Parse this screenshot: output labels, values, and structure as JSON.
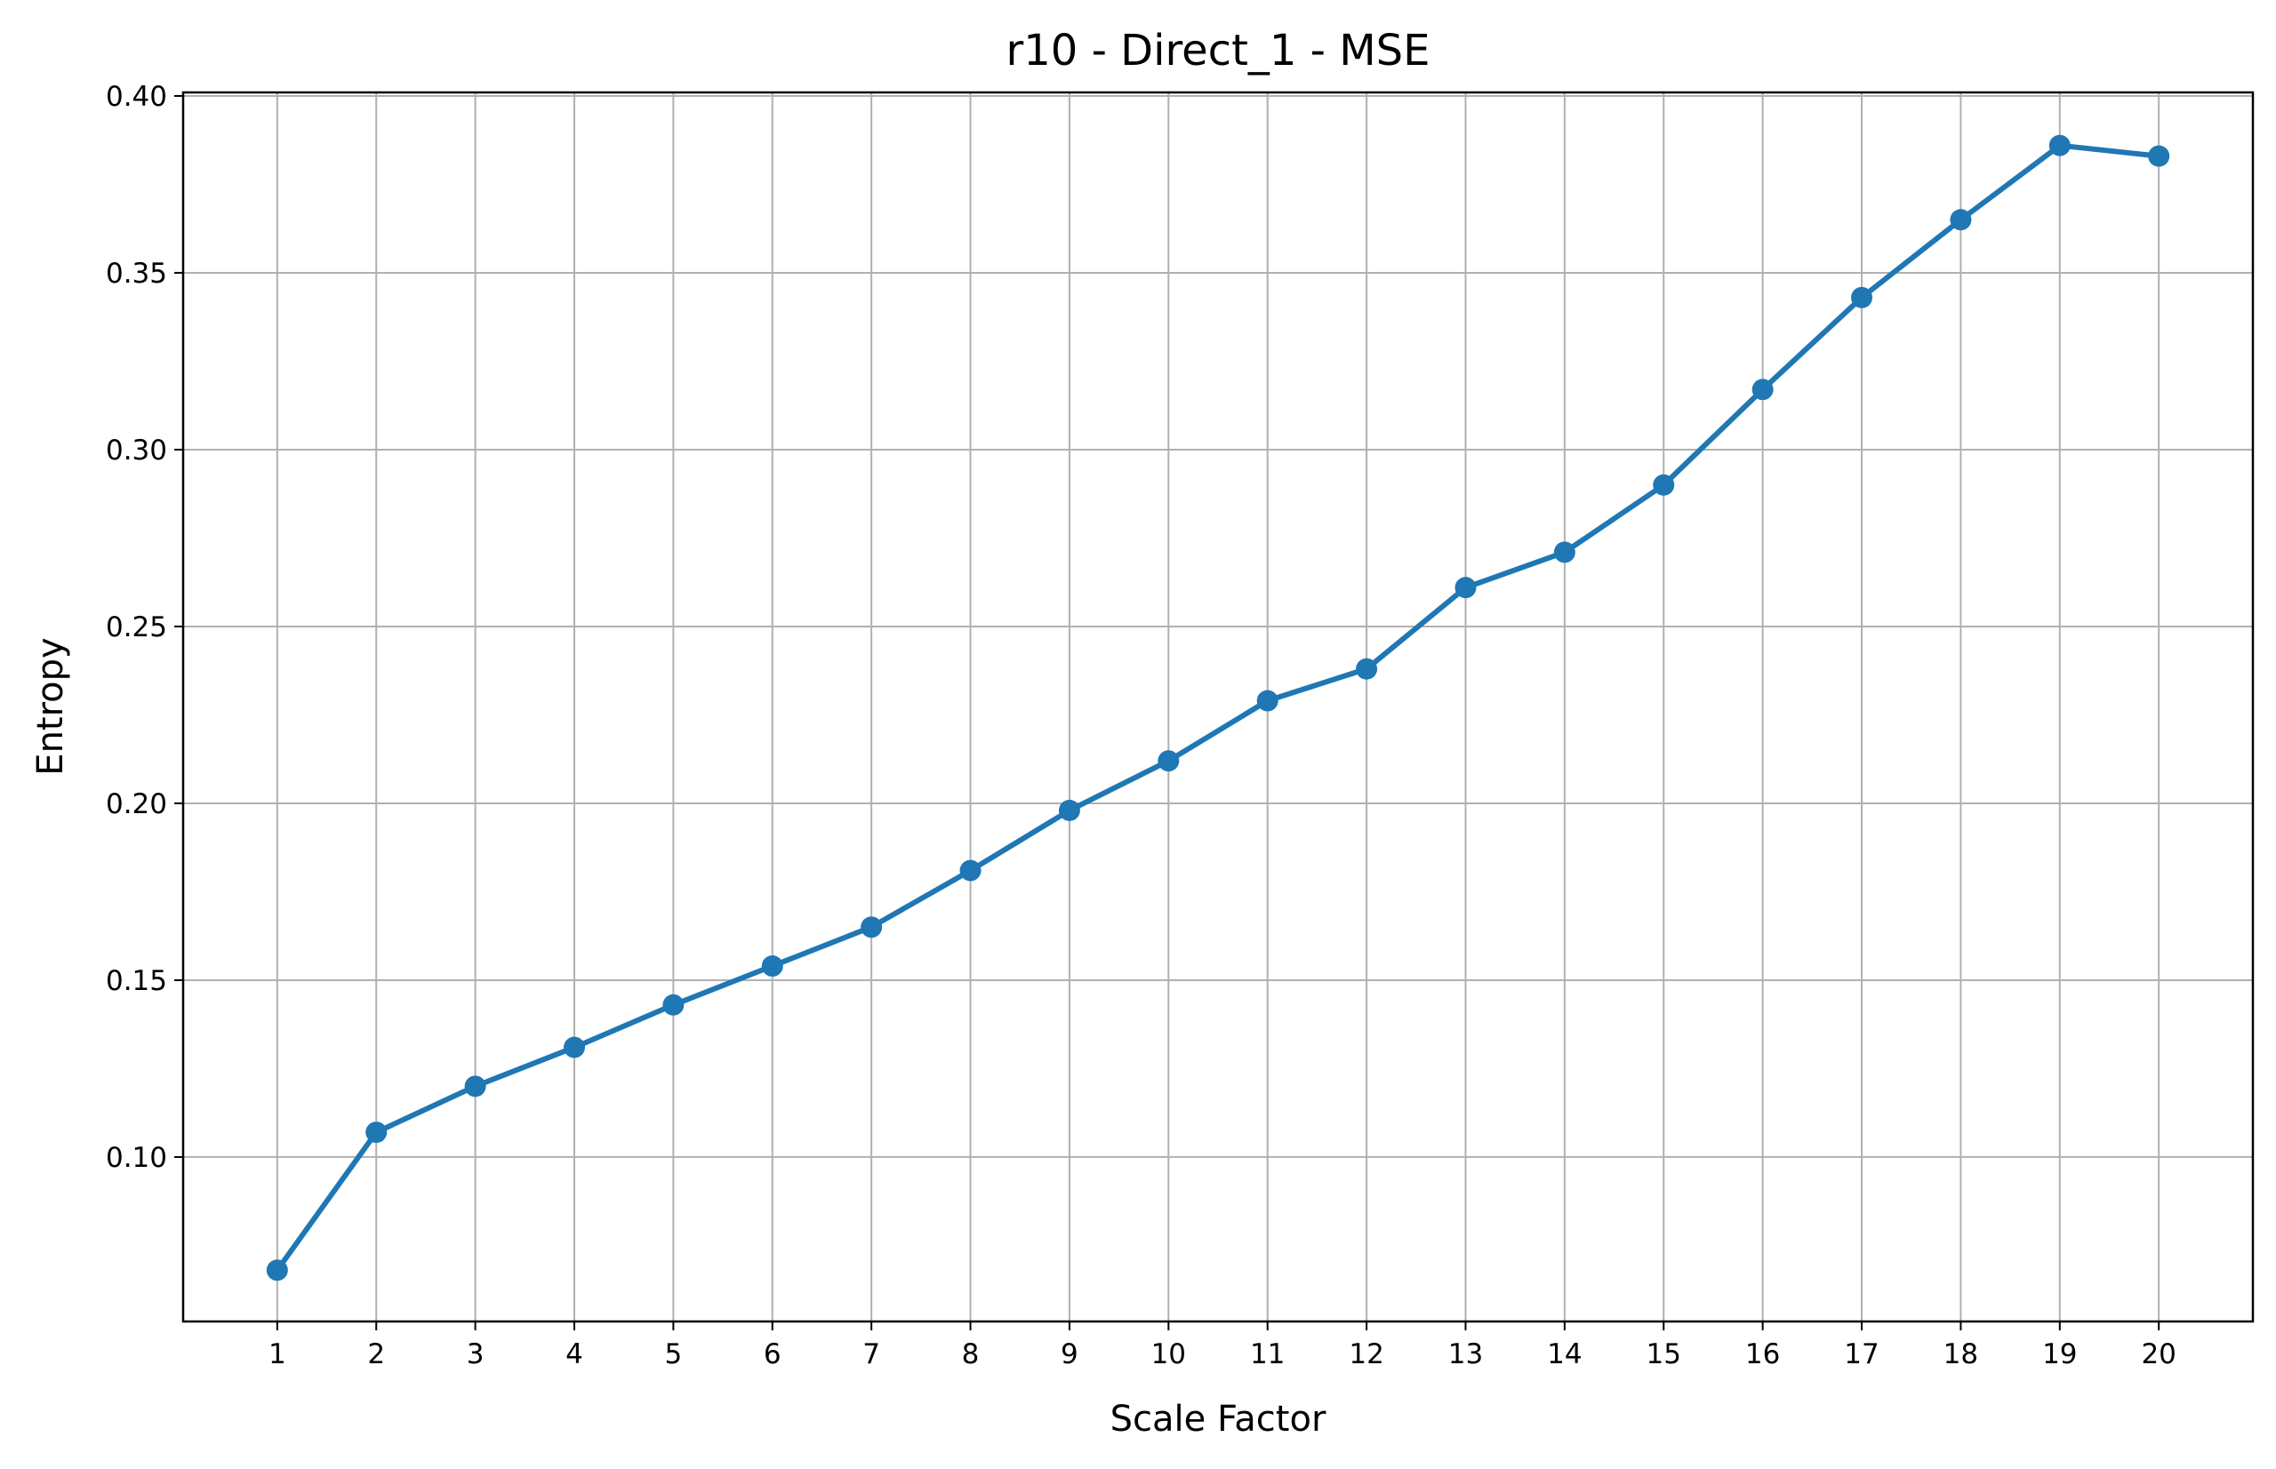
{
  "chart_data": {
    "type": "line",
    "title": "r10 - Direct_1 - MSE",
    "xlabel": "Scale Factor",
    "ylabel": "Entropy",
    "x": [
      1,
      2,
      3,
      4,
      5,
      6,
      7,
      8,
      9,
      10,
      11,
      12,
      13,
      14,
      15,
      16,
      17,
      18,
      19,
      20
    ],
    "x_tick_labels": [
      "1",
      "2",
      "3",
      "4",
      "5",
      "6",
      "7",
      "8",
      "9",
      "10",
      "11",
      "12",
      "13",
      "14",
      "15",
      "16",
      "17",
      "18",
      "19",
      "20"
    ],
    "y_ticks": [
      0.1,
      0.15,
      0.2,
      0.25,
      0.3,
      0.35,
      0.4
    ],
    "y_tick_labels": [
      "0.10",
      "0.15",
      "0.20",
      "0.25",
      "0.30",
      "0.35",
      "0.40"
    ],
    "xlim": [
      0.05,
      20.95
    ],
    "ylim": [
      0.0535,
      0.401
    ],
    "grid": true,
    "series": [
      {
        "values": [
          0.068,
          0.107,
          0.12,
          0.131,
          0.143,
          0.154,
          0.165,
          0.181,
          0.198,
          0.212,
          0.229,
          0.238,
          0.261,
          0.271,
          0.29,
          0.317,
          0.343,
          0.365,
          0.386,
          0.383
        ],
        "color": "#1f77b4",
        "marker": "circle"
      }
    ]
  }
}
